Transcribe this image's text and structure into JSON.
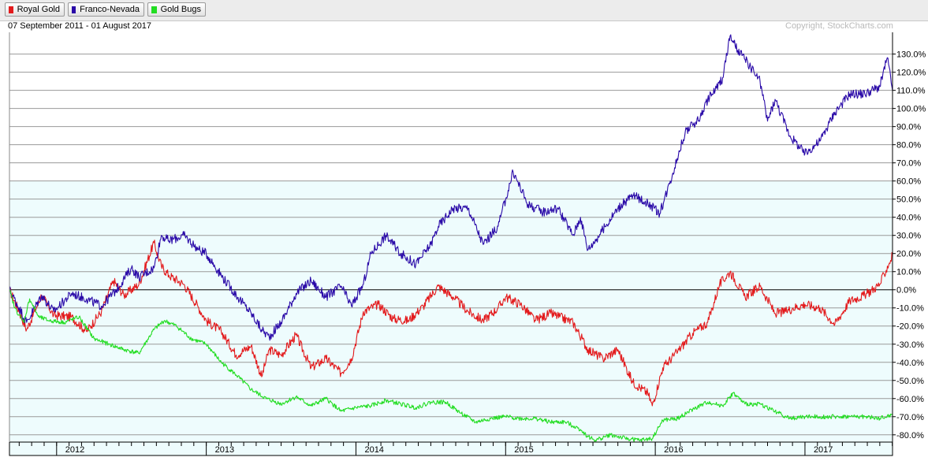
{
  "legend": [
    {
      "name": "Royal Gold",
      "color": "#e31a1c"
    },
    {
      "name": "Franco-Nevada",
      "color": "#2a0aa8"
    },
    {
      "name": "Gold Bugs",
      "color": "#22dd22"
    }
  ],
  "date_range": "07 September 2011 - 01 August 2017",
  "copyright": "Copyright, StockCharts.com",
  "chart_data": {
    "type": "line",
    "title": "",
    "xlabel": "",
    "ylabel": "",
    "x_domain": [
      2011.685,
      2017.585
    ],
    "ylim": [
      -84,
      142
    ],
    "grid": true,
    "legend_position": "top-left",
    "x_ticks": [
      {
        "value": 2012,
        "label": "2012"
      },
      {
        "value": 2013,
        "label": "2013"
      },
      {
        "value": 2014,
        "label": "2014"
      },
      {
        "value": 2015,
        "label": "2015"
      },
      {
        "value": 2016,
        "label": "2016"
      },
      {
        "value": 2017,
        "label": "2017"
      }
    ],
    "y_ticks": [
      {
        "value": 130,
        "label": "130.0%"
      },
      {
        "value": 120,
        "label": "120.0%"
      },
      {
        "value": 110,
        "label": "110.0%"
      },
      {
        "value": 100,
        "label": "100.0%"
      },
      {
        "value": 90,
        "label": "90.0%"
      },
      {
        "value": 80,
        "label": "80.0%"
      },
      {
        "value": 70,
        "label": "70.0%"
      },
      {
        "value": 60,
        "label": "60.0%"
      },
      {
        "value": 50,
        "label": "50.0%"
      },
      {
        "value": 40,
        "label": "40.0%"
      },
      {
        "value": 30,
        "label": "30.0%"
      },
      {
        "value": 20,
        "label": "20.0%"
      },
      {
        "value": 10,
        "label": "10.0%"
      },
      {
        "value": 0,
        "label": "0.0%"
      },
      {
        "value": -10,
        "label": "-10.0%"
      },
      {
        "value": -20,
        "label": "-20.0%"
      },
      {
        "value": -30,
        "label": "-30.0%"
      },
      {
        "value": -40,
        "label": "-40.0%"
      },
      {
        "value": -50,
        "label": "-50.0%"
      },
      {
        "value": -60,
        "label": "-60.0%"
      },
      {
        "value": -70,
        "label": "-70.0%"
      },
      {
        "value": -80,
        "label": "-80.0%"
      }
    ],
    "series": [
      {
        "name": "Royal Gold",
        "color": "#e31a1c",
        "x": [
          2011.685,
          2011.75,
          2011.8,
          2011.9,
          2011.98,
          2012.1,
          2012.2,
          2012.3,
          2012.38,
          2012.45,
          2012.55,
          2012.65,
          2012.7,
          2012.75,
          2012.85,
          2012.95,
          2013.0,
          2013.1,
          2013.2,
          2013.3,
          2013.37,
          2013.42,
          2013.5,
          2013.6,
          2013.7,
          2013.8,
          2013.9,
          2013.97,
          2014.05,
          2014.15,
          2014.25,
          2014.35,
          2014.45,
          2014.55,
          2014.65,
          2014.75,
          2014.85,
          2014.95,
          2015.0,
          2015.1,
          2015.2,
          2015.3,
          2015.45,
          2015.55,
          2015.65,
          2015.75,
          2015.85,
          2015.95,
          2015.98,
          2016.05,
          2016.15,
          2016.25,
          2016.35,
          2016.43,
          2016.5,
          2016.6,
          2016.7,
          2016.8,
          2016.87,
          2016.92,
          2017.0,
          2017.1,
          2017.2,
          2017.3,
          2017.4,
          2017.5,
          2017.585
        ],
        "values": [
          0,
          -12,
          -22,
          -3,
          -14,
          -15,
          -23,
          -12,
          5,
          -3,
          3,
          26,
          13,
          8,
          3,
          -10,
          -17,
          -23,
          -36,
          -31,
          -48,
          -33,
          -36,
          -25,
          -43,
          -38,
          -46,
          -38,
          -12,
          -8,
          -16,
          -17,
          -9,
          2,
          -4,
          -12,
          -17,
          -10,
          -4,
          -8,
          -17,
          -13,
          -18,
          -33,
          -38,
          -33,
          -51,
          -57,
          -64,
          -43,
          -34,
          -24,
          -18,
          3,
          10,
          -4,
          2,
          -13,
          -12,
          -10,
          -8,
          -10,
          -19,
          -6,
          -3,
          3,
          19
        ]
      },
      {
        "name": "Franco-Nevada",
        "color": "#2a0aa8",
        "x": [
          2011.685,
          2011.75,
          2011.8,
          2011.9,
          2011.98,
          2012.1,
          2012.2,
          2012.3,
          2012.4,
          2012.5,
          2012.55,
          2012.65,
          2012.7,
          2012.75,
          2012.85,
          2012.95,
          2013.0,
          2013.1,
          2013.2,
          2013.3,
          2013.37,
          2013.42,
          2013.5,
          2013.6,
          2013.7,
          2013.8,
          2013.9,
          2013.97,
          2014.05,
          2014.1,
          2014.2,
          2014.3,
          2014.4,
          2014.5,
          2014.55,
          2014.65,
          2014.75,
          2014.85,
          2014.95,
          2015.0,
          2015.05,
          2015.15,
          2015.25,
          2015.35,
          2015.45,
          2015.5,
          2015.55,
          2015.65,
          2015.75,
          2015.85,
          2015.95,
          2016.03,
          2016.1,
          2016.2,
          2016.3,
          2016.35,
          2016.4,
          2016.45,
          2016.5,
          2016.55,
          2016.6,
          2016.7,
          2016.75,
          2016.8,
          2016.9,
          2017.0,
          2017.1,
          2017.2,
          2017.3,
          2017.4,
          2017.5,
          2017.55,
          2017.585
        ],
        "values": [
          0,
          -10,
          -18,
          -3,
          -12,
          -2,
          -5,
          -9,
          0,
          12,
          7,
          12,
          30,
          27,
          30,
          22,
          20,
          8,
          -3,
          -13,
          -22,
          -26,
          -18,
          -2,
          5,
          -4,
          2,
          -9,
          3,
          20,
          30,
          20,
          14,
          25,
          35,
          45,
          45,
          25,
          35,
          50,
          65,
          47,
          43,
          45,
          30,
          40,
          22,
          33,
          45,
          52,
          48,
          42,
          60,
          87,
          95,
          105,
          110,
          117,
          140,
          132,
          127,
          115,
          93,
          105,
          85,
          75,
          82,
          98,
          108,
          108,
          112,
          128,
          110
        ]
      },
      {
        "name": "Gold Bugs",
        "color": "#22dd22",
        "x": [
          2011.685,
          2011.72,
          2011.78,
          2011.82,
          2011.88,
          2011.95,
          2012.05,
          2012.15,
          2012.25,
          2012.35,
          2012.45,
          2012.55,
          2012.65,
          2012.72,
          2012.8,
          2012.9,
          2013.0,
          2013.1,
          2013.2,
          2013.3,
          2013.4,
          2013.5,
          2013.6,
          2013.7,
          2013.8,
          2013.9,
          2014.0,
          2014.1,
          2014.2,
          2014.3,
          2014.4,
          2014.5,
          2014.6,
          2014.7,
          2014.8,
          2014.9,
          2015.0,
          2015.1,
          2015.2,
          2015.3,
          2015.4,
          2015.5,
          2015.55,
          2015.6,
          2015.7,
          2015.8,
          2015.9,
          2015.98,
          2016.05,
          2016.15,
          2016.25,
          2016.35,
          2016.45,
          2016.52,
          2016.6,
          2016.7,
          2016.8,
          2016.9,
          2017.0,
          2017.1,
          2017.2,
          2017.3,
          2017.4,
          2017.5,
          2017.585
        ],
        "values": [
          0,
          -10,
          -18,
          -5,
          -15,
          -17,
          -18,
          -15,
          -27,
          -30,
          -33,
          -35,
          -22,
          -17,
          -20,
          -27,
          -30,
          -40,
          -47,
          -55,
          -60,
          -63,
          -59,
          -64,
          -60,
          -67,
          -65,
          -64,
          -61,
          -63,
          -65,
          -62,
          -62,
          -68,
          -73,
          -71,
          -70,
          -71,
          -71,
          -73,
          -73,
          -77,
          -81,
          -83,
          -80,
          -82,
          -83,
          -82,
          -72,
          -71,
          -66,
          -62,
          -64,
          -57,
          -63,
          -63,
          -67,
          -71,
          -70,
          -70,
          -70,
          -70,
          -70,
          -71,
          -69
        ]
      }
    ]
  }
}
